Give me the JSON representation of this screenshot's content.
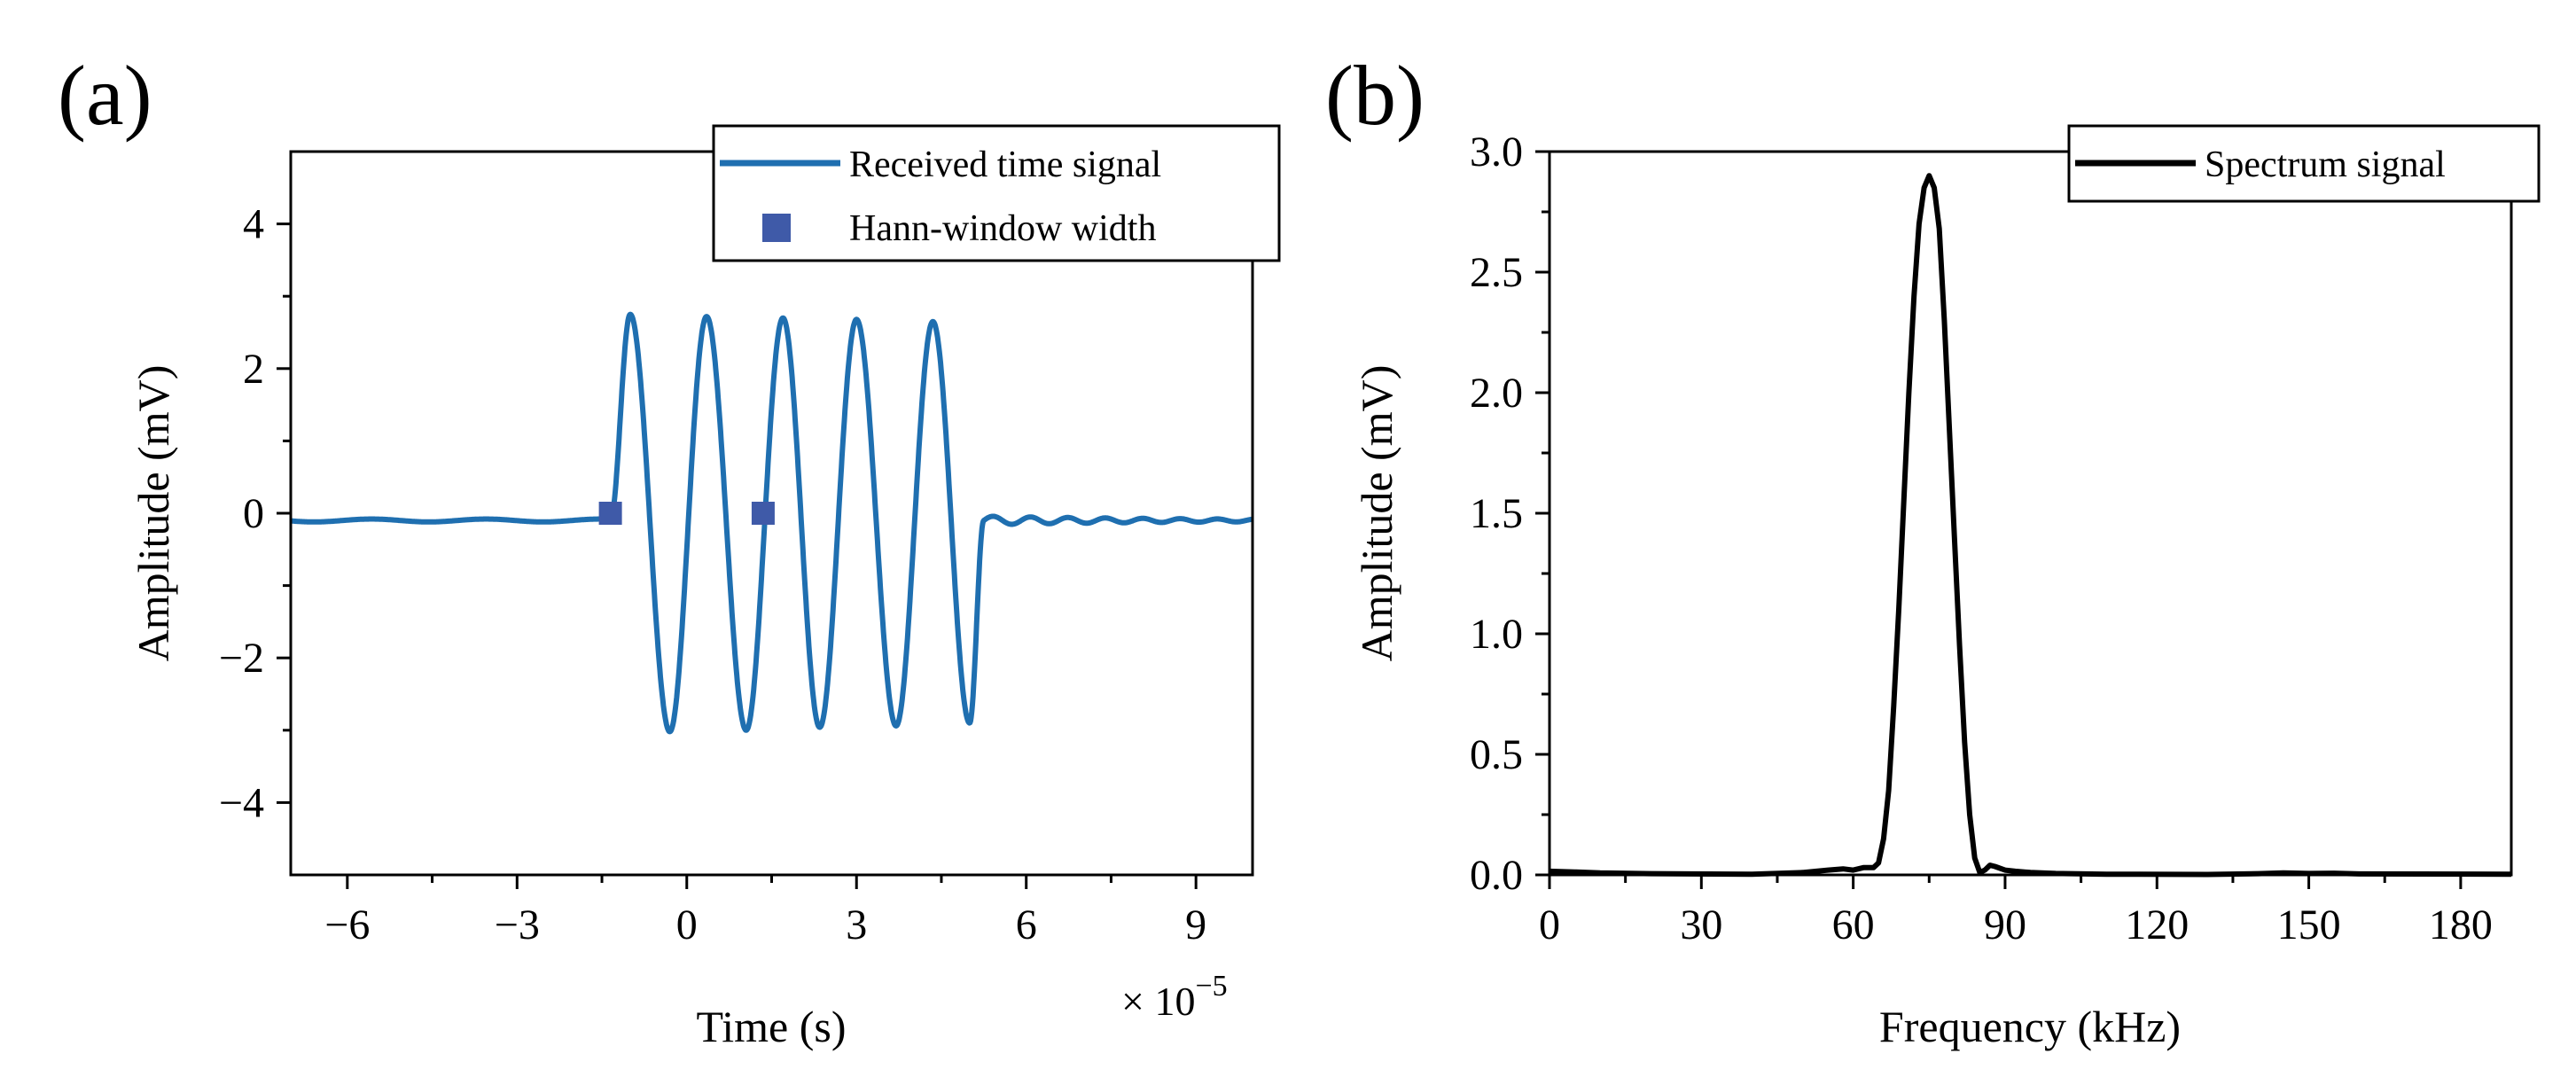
{
  "chart_data": [
    {
      "panel": "(a)",
      "type": "line",
      "title": "",
      "xlabel": "Time (s)",
      "ylabel": "Amplitude (mV)",
      "x_multiplier": "× 10",
      "x_multiplier_exponent": "−5",
      "xlim": [
        -7,
        10
      ],
      "ylim": [
        -5,
        5
      ],
      "xticks": [
        -6,
        -3,
        0,
        3,
        6,
        9
      ],
      "xtick_labels": [
        "−6",
        "−3",
        "0",
        "3",
        "6",
        "9"
      ],
      "yticks": [
        -4,
        -2,
        0,
        2,
        4
      ],
      "ytick_labels": [
        "−4",
        "−2",
        "0",
        "2",
        "4"
      ],
      "legend_position": "top-right",
      "colors": {
        "line": "#1f6fb0",
        "marker": "#3f5aa8"
      },
      "series": [
        {
          "name": "Received time signal",
          "style": "line",
          "signal": {
            "baseline": -0.1,
            "burst_start": -1.35,
            "burst_end": 5.25,
            "peak_x": [
              -1.0,
              0.35,
              1.7,
              3.0,
              4.35
            ],
            "peak_y": [
              2.75,
              2.72,
              2.7,
              2.68,
              2.65
            ],
            "trough_x": [
              -0.3,
              1.05,
              2.35,
              3.7,
              5.0
            ],
            "trough_y": [
              -3.02,
              -3.0,
              -2.96,
              -2.94,
              -2.9
            ],
            "tail_ripple_amplitude": 0.06
          }
        },
        {
          "name": "Hann-window width",
          "style": "marker",
          "x": [
            -1.35,
            1.35
          ],
          "y": [
            0,
            0
          ]
        }
      ]
    },
    {
      "panel": "(b)",
      "type": "line",
      "title": "",
      "xlabel": "Frequency (kHz)",
      "ylabel": "Amplitude (mV)",
      "xlim": [
        0,
        190
      ],
      "ylim": [
        0,
        3.0
      ],
      "xticks": [
        0,
        30,
        60,
        90,
        120,
        150,
        180
      ],
      "xtick_labels": [
        "0",
        "30",
        "60",
        "90",
        "120",
        "150",
        "180"
      ],
      "yticks": [
        0,
        0.5,
        1.0,
        1.5,
        2.0,
        2.5,
        3.0
      ],
      "ytick_labels": [
        "0.0",
        "0.5",
        "1.0",
        "1.5",
        "2.0",
        "2.5",
        "3.0"
      ],
      "legend_position": "top-right",
      "colors": {
        "line": "#000000"
      },
      "series": [
        {
          "name": "Spectrum signal",
          "style": "line",
          "x": [
            0,
            5,
            10,
            20,
            40,
            50,
            55,
            58,
            60,
            62,
            64,
            65,
            66,
            67,
            68,
            69,
            70,
            71,
            72,
            73,
            74,
            75,
            76,
            77,
            78,
            79,
            80,
            81,
            82,
            83,
            84,
            85,
            86,
            87,
            88,
            90,
            92,
            95,
            100,
            110,
            130,
            140,
            145,
            150,
            155,
            160,
            190
          ],
          "y": [
            0.015,
            0.012,
            0.008,
            0.005,
            0.003,
            0.01,
            0.02,
            0.025,
            0.02,
            0.03,
            0.03,
            0.05,
            0.15,
            0.35,
            0.7,
            1.1,
            1.55,
            2.0,
            2.4,
            2.7,
            2.85,
            2.9,
            2.85,
            2.68,
            2.3,
            1.85,
            1.4,
            0.95,
            0.55,
            0.25,
            0.07,
            0.01,
            0.02,
            0.04,
            0.035,
            0.02,
            0.015,
            0.01,
            0.006,
            0.003,
            0.002,
            0.005,
            0.008,
            0.006,
            0.007,
            0.004,
            0.003
          ]
        }
      ]
    }
  ]
}
